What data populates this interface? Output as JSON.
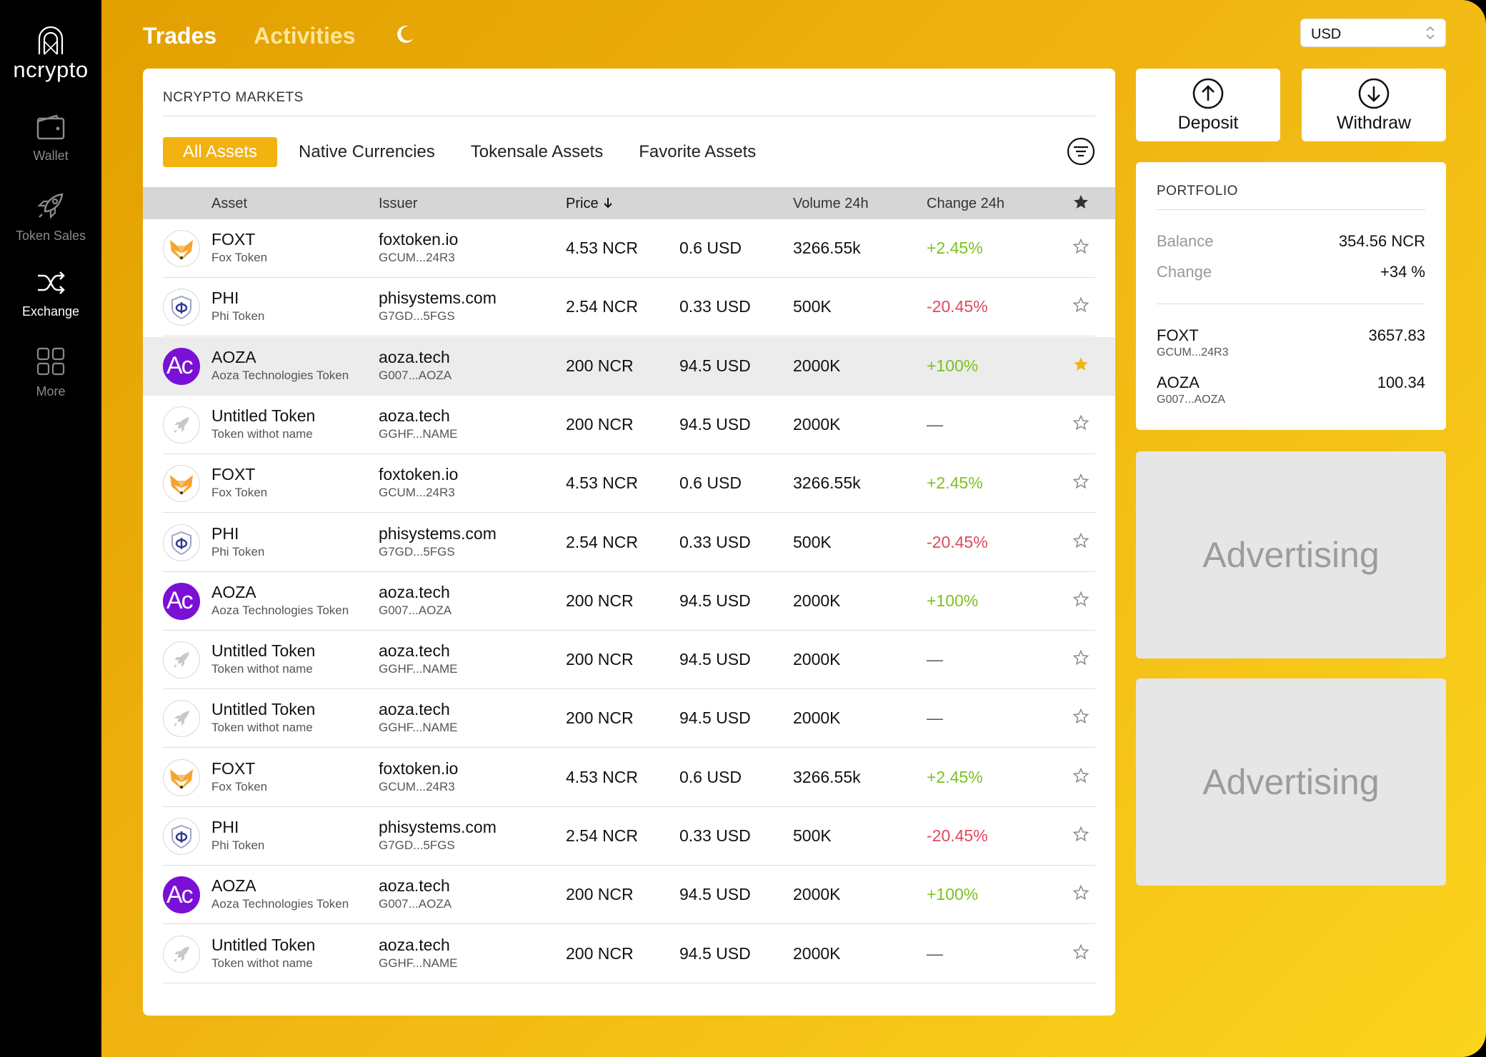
{
  "brand": {
    "logo_text": "ncrypto"
  },
  "sidebar": {
    "items": [
      {
        "label": "Wallet",
        "icon": "wallet-icon",
        "active": false
      },
      {
        "label": "Token Sales",
        "icon": "rocket-icon",
        "active": false
      },
      {
        "label": "Exchange",
        "icon": "shuffle-icon",
        "active": true
      },
      {
        "label": "More",
        "icon": "grid-icon",
        "active": false
      }
    ]
  },
  "topnav": {
    "tabs": [
      {
        "label": "Trades",
        "active": true
      },
      {
        "label": "Activities",
        "active": false
      }
    ],
    "theme_icon": "moon-icon",
    "currency_selected": "USD"
  },
  "markets": {
    "title": "NCRYPTO MARKETS",
    "filters": [
      {
        "label": "All Assets",
        "active": true
      },
      {
        "label": "Native Currencies",
        "active": false
      },
      {
        "label": "Tokensale Assets",
        "active": false
      },
      {
        "label": "Favorite Assets",
        "active": false
      }
    ],
    "columns": {
      "asset": "Asset",
      "issuer": "Issuer",
      "price": "Price",
      "volume": "Volume 24h",
      "change": "Change 24h"
    },
    "rows": [
      {
        "symbol": "FOXT",
        "name": "Fox Token",
        "issuer": "foxtoken.io",
        "issuer_id": "GCUM...24R3",
        "price_ncr": "4.53 NCR",
        "price_usd": "0.6 USD",
        "volume": "3266.55k",
        "change": "+2.45%",
        "trend": "up",
        "logo": "fox",
        "favorite": false,
        "highlight": false
      },
      {
        "symbol": "PHI",
        "name": "Phi Token",
        "issuer": "phisystems.com",
        "issuer_id": "G7GD...5FGS",
        "price_ncr": "2.54 NCR",
        "price_usd": "0.33 USD",
        "volume": "500K",
        "change": "-20.45%",
        "trend": "down",
        "logo": "phi",
        "favorite": false,
        "highlight": false
      },
      {
        "symbol": "AOZA",
        "name": "Aoza Technologies Token",
        "issuer": "aoza.tech",
        "issuer_id": "G007...AOZA",
        "price_ncr": "200 NCR",
        "price_usd": "94.5 USD",
        "volume": "2000K",
        "change": "+100%",
        "trend": "up",
        "logo": "aoza",
        "favorite": true,
        "highlight": true
      },
      {
        "symbol": "Untitled Token",
        "name": "Token withot name",
        "issuer": "aoza.tech",
        "issuer_id": "GGHF...NAME",
        "price_ncr": "200 NCR",
        "price_usd": "94.5 USD",
        "volume": "2000K",
        "change": "—",
        "trend": "none",
        "logo": "rocket",
        "favorite": false,
        "highlight": false
      },
      {
        "symbol": "FOXT",
        "name": "Fox Token",
        "issuer": "foxtoken.io",
        "issuer_id": "GCUM...24R3",
        "price_ncr": "4.53 NCR",
        "price_usd": "0.6 USD",
        "volume": "3266.55k",
        "change": "+2.45%",
        "trend": "up",
        "logo": "fox",
        "favorite": false,
        "highlight": false
      },
      {
        "symbol": "PHI",
        "name": "Phi Token",
        "issuer": "phisystems.com",
        "issuer_id": "G7GD...5FGS",
        "price_ncr": "2.54 NCR",
        "price_usd": "0.33 USD",
        "volume": "500K",
        "change": "-20.45%",
        "trend": "down",
        "logo": "phi",
        "favorite": false,
        "highlight": false
      },
      {
        "symbol": "AOZA",
        "name": "Aoza Technologies Token",
        "issuer": "aoza.tech",
        "issuer_id": "G007...AOZA",
        "price_ncr": "200 NCR",
        "price_usd": "94.5 USD",
        "volume": "2000K",
        "change": "+100%",
        "trend": "up",
        "logo": "aoza",
        "favorite": false,
        "highlight": false
      },
      {
        "symbol": "Untitled Token",
        "name": "Token withot name",
        "issuer": "aoza.tech",
        "issuer_id": "GGHF...NAME",
        "price_ncr": "200 NCR",
        "price_usd": "94.5 USD",
        "volume": "2000K",
        "change": "—",
        "trend": "none",
        "logo": "rocket",
        "favorite": false,
        "highlight": false
      },
      {
        "symbol": "Untitled Token",
        "name": "Token withot name",
        "issuer": "aoza.tech",
        "issuer_id": "GGHF...NAME",
        "price_ncr": "200 NCR",
        "price_usd": "94.5 USD",
        "volume": "2000K",
        "change": "—",
        "trend": "none",
        "logo": "rocket",
        "favorite": false,
        "highlight": false
      },
      {
        "symbol": "FOXT",
        "name": "Fox Token",
        "issuer": "foxtoken.io",
        "issuer_id": "GCUM...24R3",
        "price_ncr": "4.53 NCR",
        "price_usd": "0.6 USD",
        "volume": "3266.55k",
        "change": "+2.45%",
        "trend": "up",
        "logo": "fox",
        "favorite": false,
        "highlight": false
      },
      {
        "symbol": "PHI",
        "name": "Phi Token",
        "issuer": "phisystems.com",
        "issuer_id": "G7GD...5FGS",
        "price_ncr": "2.54 NCR",
        "price_usd": "0.33 USD",
        "volume": "500K",
        "change": "-20.45%",
        "trend": "down",
        "logo": "phi",
        "favorite": false,
        "highlight": false
      },
      {
        "symbol": "AOZA",
        "name": "Aoza Technologies Token",
        "issuer": "aoza.tech",
        "issuer_id": "G007...AOZA",
        "price_ncr": "200 NCR",
        "price_usd": "94.5 USD",
        "volume": "2000K",
        "change": "+100%",
        "trend": "up",
        "logo": "aoza",
        "favorite": false,
        "highlight": false
      },
      {
        "symbol": "Untitled Token",
        "name": "Token withot name",
        "issuer": "aoza.tech",
        "issuer_id": "GGHF...NAME",
        "price_ncr": "200 NCR",
        "price_usd": "94.5 USD",
        "volume": "2000K",
        "change": "—",
        "trend": "none",
        "logo": "rocket",
        "favorite": false,
        "highlight": false
      }
    ]
  },
  "actions": {
    "deposit_label": "Deposit",
    "withdraw_label": "Withdraw"
  },
  "portfolio": {
    "title": "PORTFOLIO",
    "balance_label": "Balance",
    "balance_value": "354.56 NCR",
    "change_label": "Change",
    "change_value": "+34 %",
    "assets": [
      {
        "symbol": "FOXT",
        "issuer_id": "GCUM...24R3",
        "amount": "3657.83"
      },
      {
        "symbol": "AOZA",
        "issuer_id": "G007...AOZA",
        "amount": "100.34"
      }
    ]
  },
  "ads": [
    {
      "label": "Advertising"
    },
    {
      "label": "Advertising"
    }
  ],
  "colors": {
    "accent": "#f2b20f",
    "positive": "#7bc21d",
    "negative": "#e0475b",
    "aoza_purple": "#7a10d6"
  }
}
